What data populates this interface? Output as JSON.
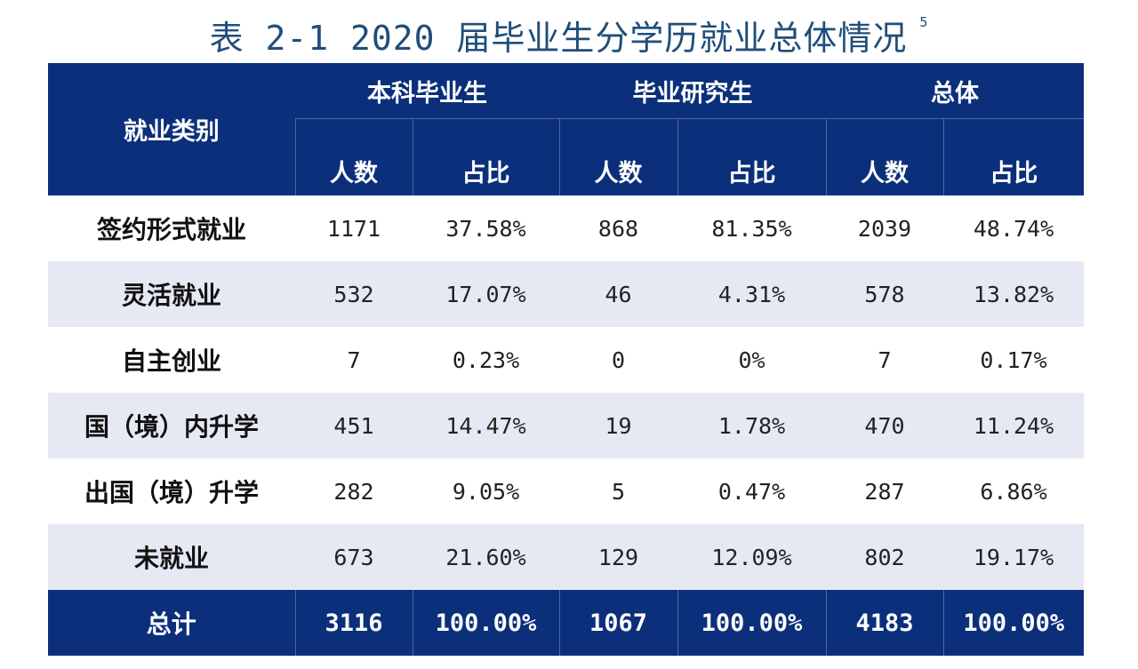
{
  "title": {
    "text": "表 2-1 2020 届毕业生分学历就业总体情况",
    "footnote": "5"
  },
  "header": {
    "category_label": "就业类别",
    "groups": [
      "本科毕业生",
      "毕业研究生",
      "总体"
    ],
    "sub_columns": [
      "人数",
      "占比",
      "人数",
      "占比",
      "人数",
      "占比"
    ]
  },
  "rows": [
    {
      "label": "签约形式就业",
      "values": [
        "1171",
        "37.58%",
        "868",
        "81.35%",
        "2039",
        "48.74%"
      ]
    },
    {
      "label": "灵活就业",
      "values": [
        "532",
        "17.07%",
        "46",
        "4.31%",
        "578",
        "13.82%"
      ]
    },
    {
      "label": "自主创业",
      "values": [
        "7",
        "0.23%",
        "0",
        "0%",
        "7",
        "0.17%"
      ]
    },
    {
      "label": "国（境）内升学",
      "values": [
        "451",
        "14.47%",
        "19",
        "1.78%",
        "470",
        "11.24%"
      ]
    },
    {
      "label": "出国（境）升学",
      "values": [
        "282",
        "9.05%",
        "5",
        "0.47%",
        "287",
        "6.86%"
      ]
    },
    {
      "label": "未就业",
      "values": [
        "673",
        "21.60%",
        "129",
        "12.09%",
        "802",
        "19.17%"
      ]
    }
  ],
  "total": {
    "label": "总计",
    "values": [
      "3116",
      "100.00%",
      "1067",
      "100.00%",
      "4183",
      "100.00%"
    ]
  },
  "colors": {
    "header_bg": "#0b2f7a",
    "alt_row_bg": "#e6e9f4",
    "title_color": "#1f4e79"
  }
}
